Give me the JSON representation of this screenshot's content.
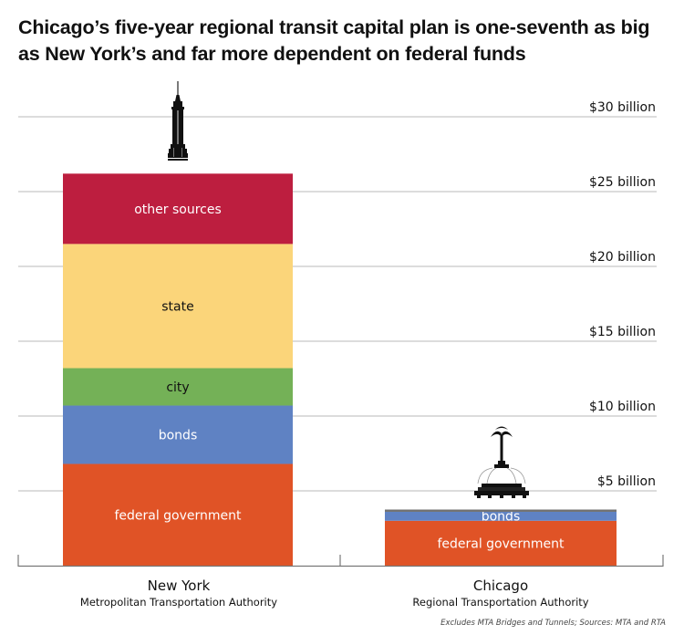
{
  "title": "Chicago’s five-year regional transit capital plan is one-seventh as big as New York’s and far more dependent on federal funds",
  "source_note": "Excludes MTA Bridges and Tunnels; Sources: MTA and RTA",
  "chart_data": {
    "type": "bar",
    "stacked": true,
    "title": "Chicago’s five-year regional transit capital plan is one-seventh as big as New York’s and far more dependent on federal funds",
    "xlabel": "",
    "ylabel": "",
    "ylim": [
      0,
      30
    ],
    "y_unit": "billion USD",
    "y_ticks": [
      5,
      10,
      15,
      20,
      25,
      30
    ],
    "y_tick_labels": [
      "$5 billion",
      "$10 billion",
      "$15 billion",
      "$20 billion",
      "$25 billion",
      "$30 billion"
    ],
    "grid": true,
    "categories": [
      {
        "name": "New York",
        "subtitle": "Metropolitan Transportation Authority",
        "icon": "empire-state-building-icon"
      },
      {
        "name": "Chicago",
        "subtitle": "Regional Transportation Authority",
        "icon": "buckingham-fountain-icon"
      }
    ],
    "series": [
      {
        "name": "federal government",
        "label": "federal government",
        "color": "#e05326",
        "text_color": "#ffffff",
        "values": [
          6.8,
          3.0
        ]
      },
      {
        "name": "bonds",
        "label": "bonds",
        "color": "#5f82c3",
        "text_color": "#ffffff",
        "values": [
          3.9,
          0.6
        ]
      },
      {
        "name": "city",
        "label": "city",
        "color": "#74b157",
        "text_color": "#111111",
        "values": [
          2.5,
          0
        ]
      },
      {
        "name": "state",
        "label": "state",
        "color": "#fbd57a",
        "text_color": "#111111",
        "values": [
          8.3,
          0
        ]
      },
      {
        "name": "other sources",
        "label": "other sources",
        "color": "#bd1e3f",
        "text_color": "#ffffff",
        "values": [
          4.7,
          0.15
        ]
      }
    ],
    "series_colors_other_chicago": "#707070"
  }
}
